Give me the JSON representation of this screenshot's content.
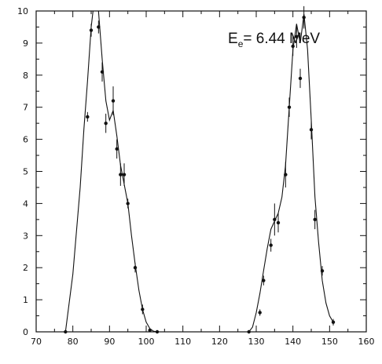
{
  "chart_data": {
    "type": "scatter",
    "title": "",
    "xlabel": "",
    "ylabel": "",
    "xlim": [
      70,
      160
    ],
    "ylim": [
      0,
      10
    ],
    "x_ticks": [
      70,
      80,
      90,
      100,
      110,
      120,
      130,
      140,
      150,
      160
    ],
    "y_ticks": [
      0,
      1,
      2,
      3,
      4,
      5,
      6,
      7,
      8,
      9,
      10
    ],
    "grid": false,
    "annotation": {
      "main": "E",
      "sub": "e",
      "rest": "= 6.44 MeV"
    },
    "series": [
      {
        "points": [
          {
            "x": 78,
            "y": 0.0,
            "err": 0.0
          },
          {
            "x": 84,
            "y": 6.7,
            "err": 0.15
          },
          {
            "x": 85,
            "y": 9.4,
            "err": 0.2
          },
          {
            "x": 87,
            "y": 9.5,
            "err": 0.2
          },
          {
            "x": 88,
            "y": 8.1,
            "err": 0.3
          },
          {
            "x": 89,
            "y": 6.5,
            "err": 0.3
          },
          {
            "x": 91,
            "y": 7.2,
            "err": 0.45
          },
          {
            "x": 92,
            "y": 5.7,
            "err": 0.3
          },
          {
            "x": 93,
            "y": 4.9,
            "err": 0.35
          },
          {
            "x": 94,
            "y": 4.9,
            "err": 0.35
          },
          {
            "x": 95,
            "y": 4.0,
            "err": 0.15
          },
          {
            "x": 97,
            "y": 2.0,
            "err": 0.15
          },
          {
            "x": 99,
            "y": 0.7,
            "err": 0.15
          },
          {
            "x": 101,
            "y": 0.05,
            "err": 0.0
          },
          {
            "x": 103,
            "y": 0.0,
            "err": 0.0
          },
          {
            "x": 128,
            "y": 0.0,
            "err": 0.0
          },
          {
            "x": 131,
            "y": 0.6,
            "err": 0.1
          },
          {
            "x": 132,
            "y": 1.6,
            "err": 0.15
          },
          {
            "x": 134,
            "y": 2.7,
            "err": 0.2
          },
          {
            "x": 135,
            "y": 3.5,
            "err": 0.5
          },
          {
            "x": 136,
            "y": 3.4,
            "err": 0.3
          },
          {
            "x": 138,
            "y": 4.9,
            "err": 0.4
          },
          {
            "x": 139,
            "y": 7.0,
            "err": 0.3
          },
          {
            "x": 140,
            "y": 8.9,
            "err": 0.3
          },
          {
            "x": 141,
            "y": 9.2,
            "err": 0.35
          },
          {
            "x": 142,
            "y": 7.9,
            "err": 0.3
          },
          {
            "x": 143,
            "y": 9.8,
            "err": 0.35
          },
          {
            "x": 145,
            "y": 6.3,
            "err": 0.3
          },
          {
            "x": 146,
            "y": 3.5,
            "err": 0.3
          },
          {
            "x": 148,
            "y": 1.9,
            "err": 0.15
          },
          {
            "x": 151,
            "y": 0.3,
            "err": 0.1
          }
        ]
      }
    ],
    "fit_curve": {
      "x": [
        75,
        78,
        80,
        82,
        83,
        84,
        85,
        86,
        87,
        88,
        89,
        90,
        91,
        92,
        93,
        94,
        95,
        96,
        97,
        98,
        99,
        100,
        101,
        102,
        103,
        125,
        127,
        128,
        129,
        130,
        131,
        132,
        133,
        134,
        135,
        136,
        137,
        138,
        139,
        140,
        141,
        142,
        143,
        144,
        145,
        146,
        147,
        148,
        149,
        150,
        151
      ],
      "y": [
        0,
        0,
        1.8,
        4.5,
        6.3,
        7.8,
        9.5,
        10.5,
        10.0,
        8.5,
        7.2,
        6.6,
        6.9,
        6.1,
        5.2,
        4.6,
        4.0,
        3.0,
        2.1,
        1.3,
        0.7,
        0.3,
        0.1,
        0.02,
        0,
        0,
        0,
        0.0,
        0.15,
        0.6,
        1.2,
        1.9,
        2.6,
        3.2,
        3.45,
        3.7,
        4.2,
        5.2,
        7.0,
        8.8,
        9.6,
        9.0,
        9.9,
        8.8,
        6.6,
        4.2,
        2.8,
        1.6,
        0.9,
        0.5,
        0.3
      ]
    }
  }
}
